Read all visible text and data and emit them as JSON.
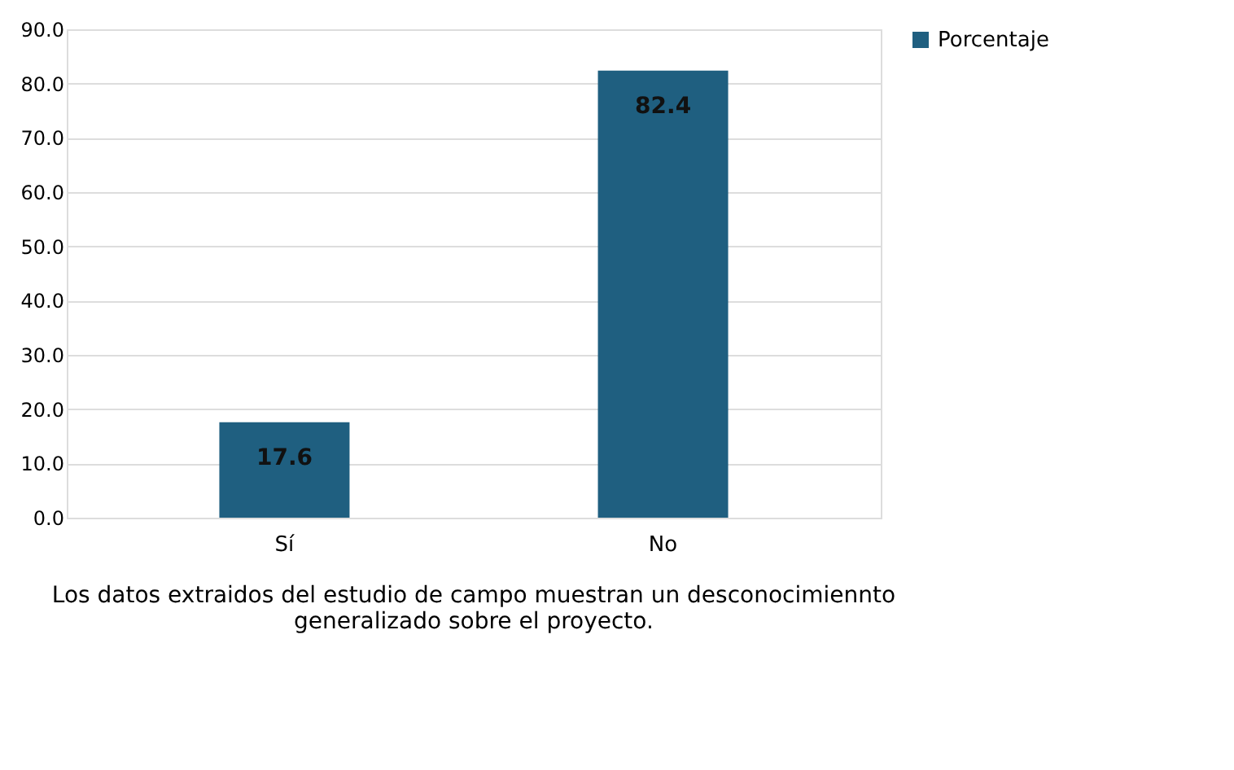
{
  "chart_data": {
    "type": "bar",
    "categories": [
      "Sí",
      "No"
    ],
    "series": [
      {
        "name": "Porcentaje",
        "color": "#1f5f80",
        "values": [
          17.6,
          82.4
        ]
      }
    ],
    "ylim": [
      0,
      90
    ],
    "yticks": [
      {
        "value": 0,
        "label": "0.0"
      },
      {
        "value": 10,
        "label": "10.0"
      },
      {
        "value": 20,
        "label": "20.0"
      },
      {
        "value": 30,
        "label": "30.0"
      },
      {
        "value": 40,
        "label": "40.0"
      },
      {
        "value": 50,
        "label": "50.0"
      },
      {
        "value": 60,
        "label": "60.0"
      },
      {
        "value": 70,
        "label": "70.0"
      },
      {
        "value": 80,
        "label": "80.0"
      },
      {
        "value": 90,
        "label": "90.0"
      }
    ],
    "grid": "y",
    "legend": "right",
    "data_labels": true,
    "annotations": [
      "Los datos extraidos del estudio de campo muestran un desconocimiennto generalizado sobre el proyecto."
    ]
  }
}
